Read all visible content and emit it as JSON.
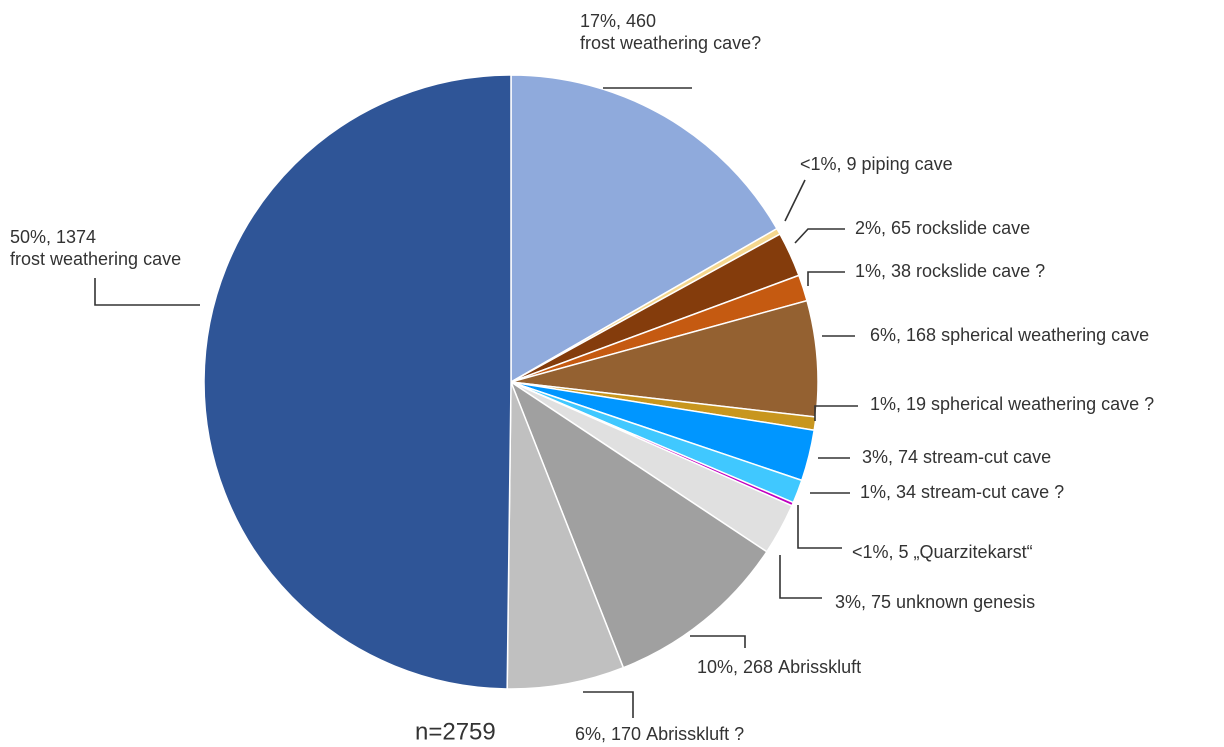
{
  "chart_data": {
    "type": "pie",
    "annotation": "n=2759",
    "categories": [
      "frost weathering cave?",
      "piping cave",
      "rockslide cave",
      "rockslide cave ?",
      "spherical weathering cave",
      "spherical weathering cave ?",
      "stream-cut cave",
      "stream-cut cave ?",
      "„Quarzitekarst“",
      "unknown genesis",
      "Abrisskluft",
      "Abrisskluft ?",
      "frost weathering cave"
    ],
    "values": [
      460,
      9,
      65,
      38,
      168,
      19,
      74,
      34,
      5,
      75,
      268,
      170,
      1374
    ],
    "value_labels": [
      "17%, 460",
      "<1%, 9",
      "2%, 65",
      "1%, 38",
      "6%, 168",
      "1%, 19",
      "3%, 74",
      "1%, 34",
      "<1%, 5",
      "3%, 75",
      "10%, 268",
      "6%, 170",
      "50%, 1374"
    ],
    "colors": [
      "#8faadc",
      "#f5d78e",
      "#843c0c",
      "#c55a11",
      "#946131",
      "#c8961e",
      "#0096ff",
      "#40c8ff",
      "#c000c0",
      "#e0e0e0",
      "#a0a0a0",
      "#c0c0c0",
      "#2f5597"
    ]
  }
}
